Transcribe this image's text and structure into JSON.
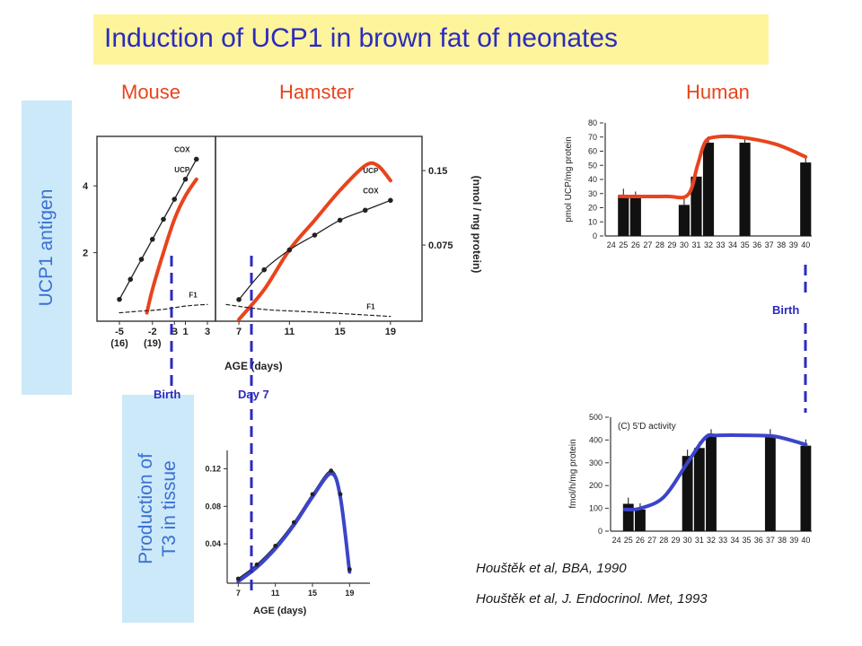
{
  "title": "Induction of UCP1 in brown fat of neonates",
  "species": {
    "mouse": "Mouse",
    "hamster": "Hamster",
    "human": "Human"
  },
  "side_labels": {
    "ucp1": "UCP1 antigen",
    "t3_line1": "Production of",
    "t3_line2": "T3 in tissue"
  },
  "markers": {
    "birth": "Birth",
    "day7": "Day 7",
    "birth_human": "Birth"
  },
  "citations": [
    "Houštěk et al, BBA, 1990",
    "Houštěk et al, J. Endocrinol. Met, 1993"
  ],
  "colors": {
    "ucp_curve": "#e8441d",
    "t3_curve": "#3b45c9",
    "marker": "#2b2bbf",
    "title_bg": "#fdf49c",
    "side_bg": "#cbe9f9"
  },
  "chart_data": [
    {
      "type": "line",
      "panel": "mouse",
      "xlabel": "",
      "ylabel": "",
      "x_ticks": [
        "-5",
        "-2",
        "B",
        "1",
        "3"
      ],
      "x_ticks_sub": [
        "(16)",
        "(19)"
      ],
      "y_ticks": [
        "2",
        "4"
      ],
      "series": [
        {
          "name": "COX",
          "x": [
            -5,
            -4,
            -3,
            -2,
            -1,
            0,
            1,
            2
          ],
          "y": [
            0.6,
            1.2,
            1.8,
            2.4,
            3.0,
            3.6,
            4.2,
            4.8
          ]
        },
        {
          "name": "UCP",
          "x": [
            -2.5,
            -2,
            -1,
            0,
            1,
            2
          ],
          "y": [
            0.2,
            0.9,
            2.0,
            3.0,
            3.7,
            4.2
          ]
        },
        {
          "name": "F1",
          "x": [
            -5,
            -3,
            -1,
            1,
            3
          ],
          "y": [
            0.2,
            0.25,
            0.3,
            0.4,
            0.45
          ]
        }
      ]
    },
    {
      "type": "line",
      "panel": "hamster",
      "xlabel": "AGE (days)",
      "ylabel": "(nmol / mg protein)",
      "x_ticks": [
        "7",
        "11",
        "15",
        "19"
      ],
      "y_ticks": [
        "0.075",
        "0.15"
      ],
      "series": [
        {
          "name": "UCP",
          "x": [
            7,
            9,
            11,
            13,
            15,
            17,
            18,
            19
          ],
          "y": [
            0.0,
            0.03,
            0.07,
            0.1,
            0.13,
            0.155,
            0.155,
            0.14
          ]
        },
        {
          "name": "COX",
          "x": [
            7,
            9,
            11,
            13,
            15,
            17,
            19
          ],
          "y": [
            0.02,
            0.05,
            0.07,
            0.085,
            0.1,
            0.11,
            0.12
          ]
        },
        {
          "name": "F1",
          "x": [
            6,
            9,
            12,
            15,
            19
          ],
          "y": [
            0.015,
            0.01,
            0.008,
            0.006,
            0.003
          ]
        }
      ]
    },
    {
      "type": "bar",
      "panel": "human-ucp1",
      "ylabel": "pmol UCP/mg protein",
      "x_ticks": [
        "24",
        "25",
        "26",
        "27",
        "28",
        "29",
        "30",
        "31",
        "32",
        "33",
        "34",
        "35",
        "36",
        "37",
        "38",
        "39",
        "40"
      ],
      "y_ticks": [
        "0",
        "10",
        "20",
        "30",
        "40",
        "50",
        "60",
        "70",
        "80"
      ],
      "categories": [
        "25",
        "26",
        "30",
        "31",
        "32",
        "35",
        "40"
      ],
      "values": [
        29,
        27,
        22,
        42,
        66,
        66,
        52
      ]
    },
    {
      "type": "bar",
      "panel": "human-5d",
      "title": "(C) 5'D activity",
      "ylabel": "fmol/h/mg protein",
      "x_ticks": [
        "24",
        "25",
        "26",
        "27",
        "28",
        "29",
        "30",
        "31",
        "32",
        "33",
        "34",
        "35",
        "36",
        "37",
        "38",
        "39",
        "40"
      ],
      "y_ticks": [
        "0",
        "100",
        "200",
        "300",
        "400",
        "500"
      ],
      "categories": [
        "25",
        "26",
        "30",
        "31",
        "32",
        "37",
        "40"
      ],
      "values": [
        120,
        95,
        330,
        365,
        420,
        420,
        375
      ]
    },
    {
      "type": "line",
      "panel": "t3-hamster",
      "xlabel": "AGE (days)",
      "x_ticks": [
        "7",
        "11",
        "15",
        "19"
      ],
      "y_ticks": [
        "0.04",
        "0.08",
        "0.12"
      ],
      "series": [
        {
          "name": "",
          "x": [
            7,
            9,
            11,
            13,
            15,
            17,
            18,
            19
          ],
          "y": [
            0.0,
            0.015,
            0.035,
            0.06,
            0.09,
            0.115,
            0.09,
            0.01
          ]
        }
      ]
    }
  ]
}
